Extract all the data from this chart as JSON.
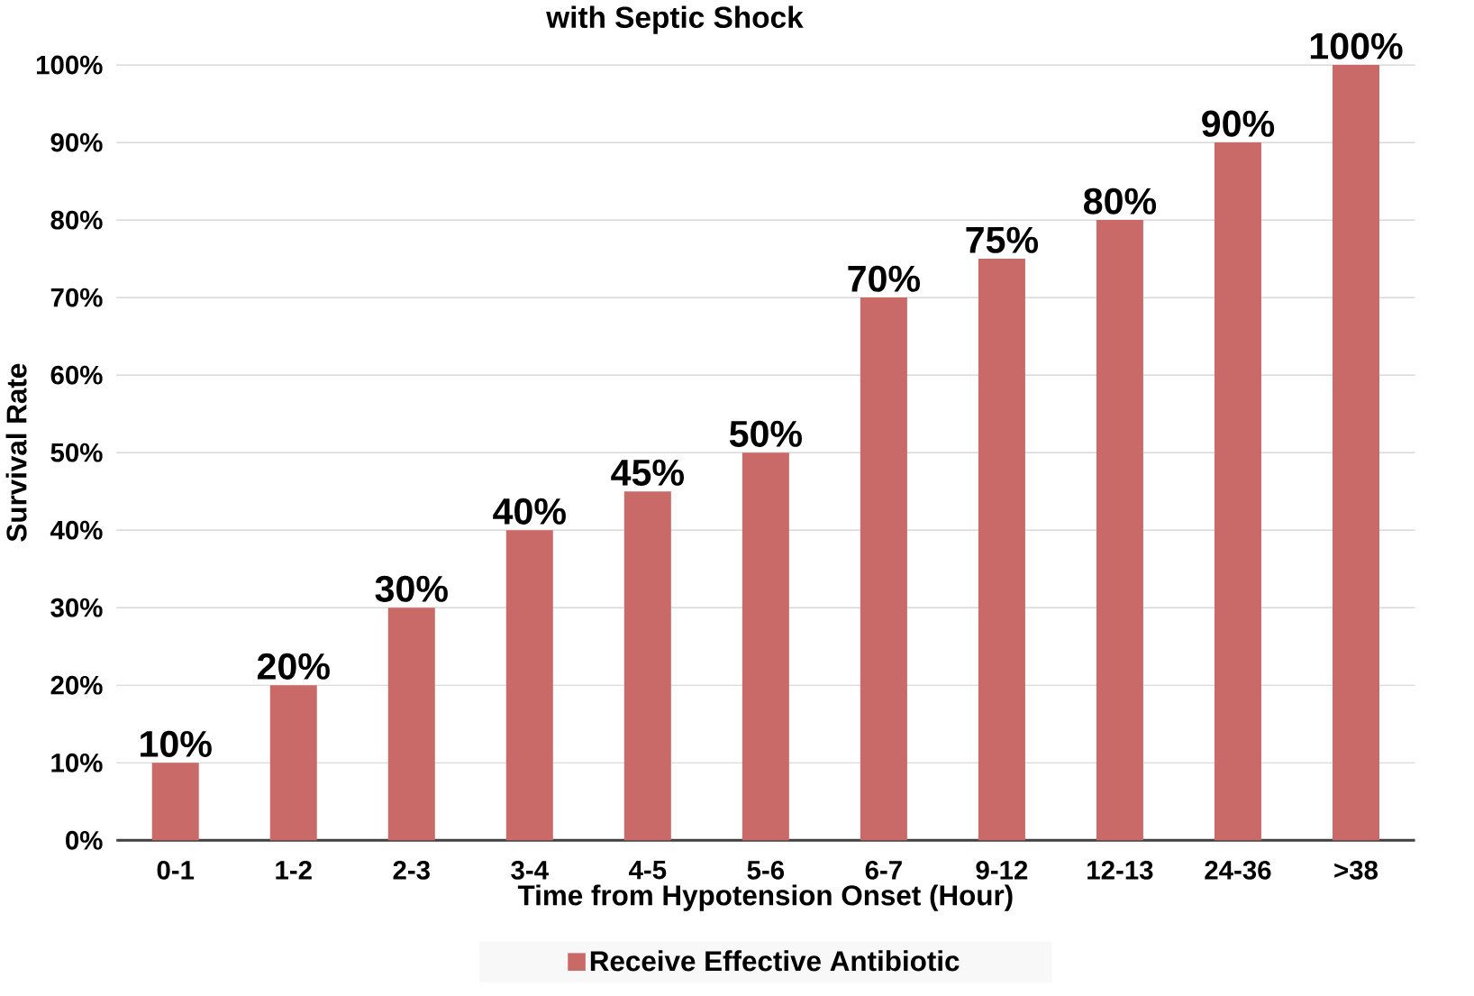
{
  "chart_data": {
    "type": "bar",
    "title": "with Septic Shock",
    "xlabel": "Time from Hypotension Onset (Hour)",
    "ylabel": "Survival Rate",
    "categories": [
      "0-1",
      "1-2",
      "2-3",
      "3-4",
      "4-5",
      "5-6",
      "6-7",
      "9-12",
      "12-13",
      "24-36",
      ">38"
    ],
    "series": [
      {
        "name": "Receive Effective Antibiotic",
        "color": "#c96a68",
        "values": [
          10,
          20,
          30,
          40,
          45,
          50,
          70,
          75,
          80,
          90,
          100
        ],
        "value_labels": [
          "10%",
          "20%",
          "30%",
          "40%",
          "45%",
          "50%",
          "70%",
          "75%",
          "80%",
          "90%",
          "100%"
        ]
      }
    ],
    "ylim": [
      0,
      100
    ],
    "yticks": [
      {
        "value": 0,
        "label": "0%"
      },
      {
        "value": 10,
        "label": "10%"
      },
      {
        "value": 20,
        "label": "20%"
      },
      {
        "value": 30,
        "label": "30%"
      },
      {
        "value": 40,
        "label": "40%"
      },
      {
        "value": 50,
        "label": "50%"
      },
      {
        "value": 60,
        "label": "60%"
      },
      {
        "value": 70,
        "label": "70%"
      },
      {
        "value": 80,
        "label": "80%"
      },
      {
        "value": 90,
        "label": "90%"
      },
      {
        "value": 100,
        "label": "100%"
      }
    ],
    "grid": "y",
    "legend": "bottom"
  }
}
